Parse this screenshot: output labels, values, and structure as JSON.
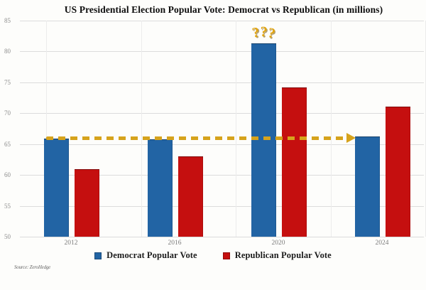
{
  "chart_data": {
    "type": "bar",
    "title": "US Presidential Election Popular Vote: Democrat vs Republican (in millions)",
    "categories": [
      "2012",
      "2016",
      "2020",
      "2024"
    ],
    "series": [
      {
        "name": "Democrat Popular Vote",
        "color": "#2264a4",
        "values": [
          65.9,
          65.8,
          81.3,
          66.2
        ]
      },
      {
        "name": "Republican Popular Vote",
        "color": "#c50f0f",
        "values": [
          60.9,
          63.0,
          74.2,
          71.1
        ]
      }
    ],
    "ylim": [
      50,
      85
    ],
    "yticks": [
      50,
      55,
      60,
      65,
      70,
      75,
      80,
      85
    ],
    "grid": true,
    "legend_position": "bottom",
    "annotations": {
      "question_marks": {
        "text": "???",
        "color": "#e2a50f",
        "above_category": "2020",
        "above_series": "Democrat Popular Vote"
      },
      "arrow": {
        "type": "horizontal-dashed",
        "color": "#d6a31c",
        "level": 65.9,
        "from_category": "2012",
        "to_category": "2024",
        "direction": "right"
      }
    }
  },
  "footer": {
    "source": "Source: ZeroHedge"
  }
}
